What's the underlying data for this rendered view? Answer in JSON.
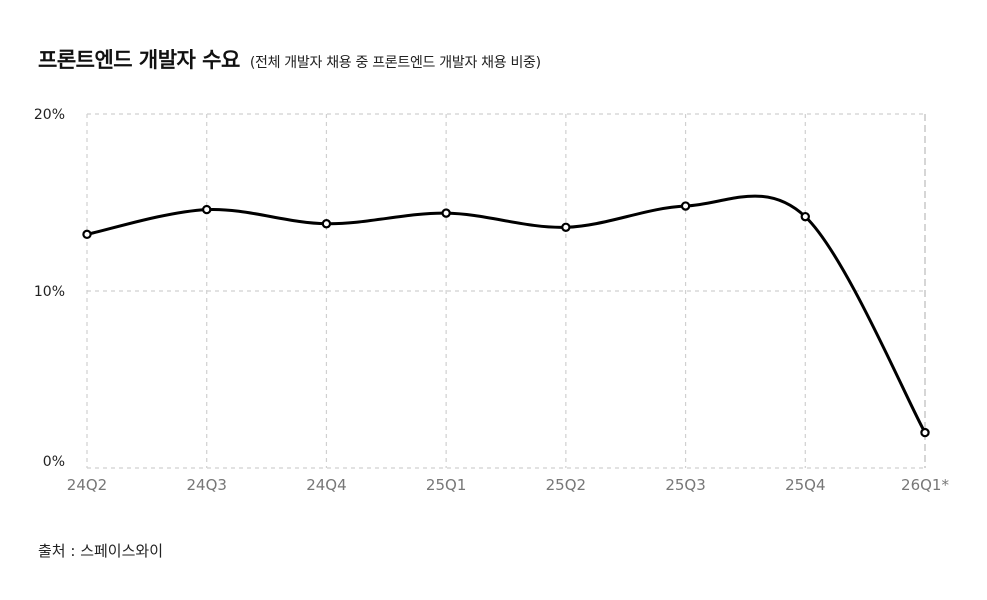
{
  "chart_data": {
    "type": "line",
    "title": "프론트엔드 개발자 수요",
    "subtitle": "(전체 개발자 채용 중 프론트엔드 개발자 채용 비중)",
    "categories": [
      "24Q2",
      "24Q3",
      "24Q4",
      "25Q1",
      "25Q2",
      "25Q3",
      "25Q4",
      "26Q1*"
    ],
    "series": [
      {
        "values": [
          13.2,
          14.6,
          13.8,
          14.4,
          13.6,
          14.8,
          14.2,
          2.0
        ],
        "color": "#000000"
      }
    ],
    "ylim": [
      0,
      20
    ],
    "yticks": [
      0,
      10,
      20
    ],
    "ytick_labels": [
      "0%",
      "10%",
      "20%"
    ],
    "xlabel": "",
    "ylabel": "",
    "grid": true,
    "grid_style": "dashed",
    "smooth": true,
    "source": "출처 : 스페이스와이"
  }
}
